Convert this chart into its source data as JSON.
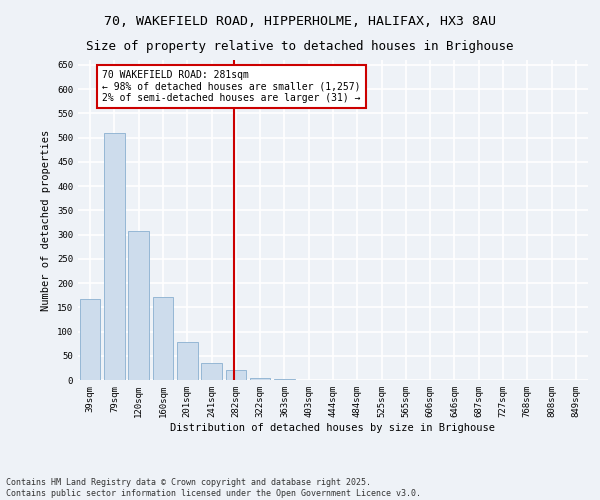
{
  "title_line1": "70, WAKEFIELD ROAD, HIPPERHOLME, HALIFAX, HX3 8AU",
  "title_line2": "Size of property relative to detached houses in Brighouse",
  "xlabel": "Distribution of detached houses by size in Brighouse",
  "ylabel": "Number of detached properties",
  "bar_color": "#cddcec",
  "bar_edge_color": "#8ab0d0",
  "categories": [
    "39sqm",
    "79sqm",
    "120sqm",
    "160sqm",
    "201sqm",
    "241sqm",
    "282sqm",
    "322sqm",
    "363sqm",
    "403sqm",
    "444sqm",
    "484sqm",
    "525sqm",
    "565sqm",
    "606sqm",
    "646sqm",
    "687sqm",
    "727sqm",
    "768sqm",
    "808sqm",
    "849sqm"
  ],
  "values": [
    168,
    510,
    307,
    172,
    78,
    35,
    20,
    4,
    2,
    0,
    0,
    0,
    0,
    0,
    0,
    0,
    0,
    0,
    0,
    0,
    1
  ],
  "vline_x": 6,
  "vline_color": "#cc0000",
  "annotation_text": "70 WAKEFIELD ROAD: 281sqm\n← 98% of detached houses are smaller (1,257)\n2% of semi-detached houses are larger (31) →",
  "ylim": [
    0,
    660
  ],
  "yticks": [
    0,
    50,
    100,
    150,
    200,
    250,
    300,
    350,
    400,
    450,
    500,
    550,
    600,
    650
  ],
  "background_color": "#eef2f7",
  "grid_color": "#ffffff",
  "footer_line1": "Contains HM Land Registry data © Crown copyright and database right 2025.",
  "footer_line2": "Contains public sector information licensed under the Open Government Licence v3.0.",
  "title_fontsize": 9.5,
  "axis_label_fontsize": 7.5,
  "tick_fontsize": 6.5,
  "annotation_fontsize": 7,
  "footer_fontsize": 6
}
